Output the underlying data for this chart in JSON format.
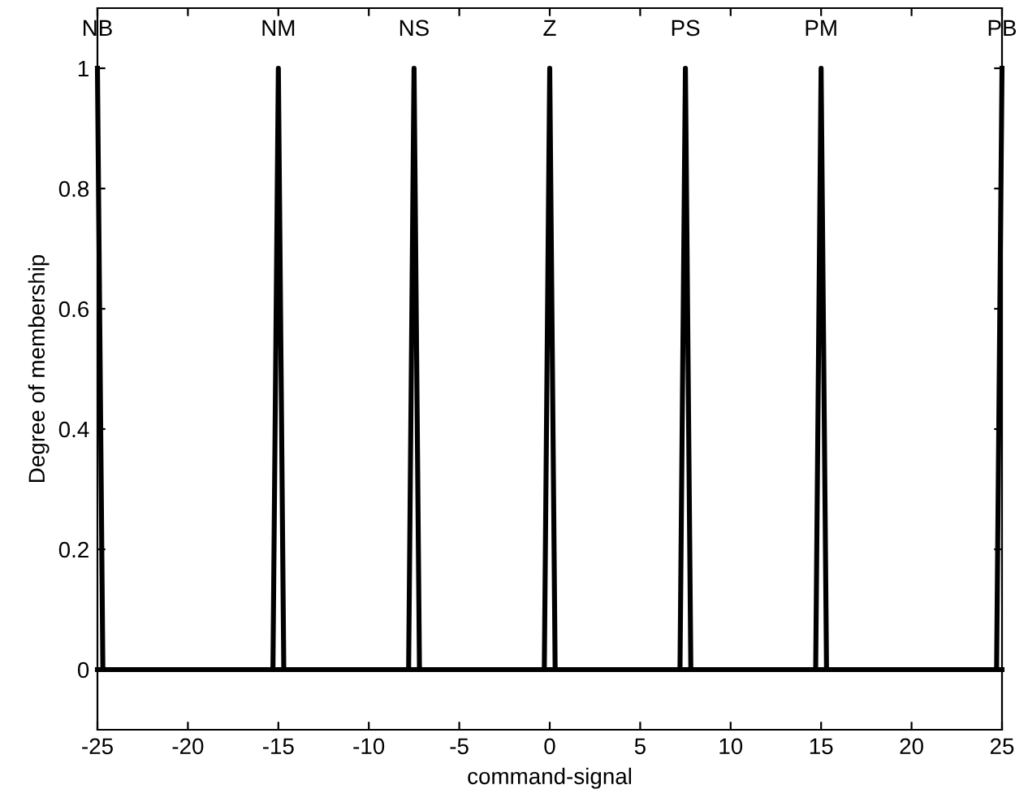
{
  "chart_data": {
    "type": "line",
    "xlabel": "command-signal",
    "ylabel": "Degree of membership",
    "series": [
      {
        "name": "NB",
        "color": "#000000",
        "x": [
          -25,
          -24.7
        ],
        "values": [
          1,
          0
        ]
      },
      {
        "name": "NM",
        "color": "#000000",
        "x": [
          -15.3,
          -15,
          -14.7
        ],
        "values": [
          0,
          1,
          0
        ]
      },
      {
        "name": "NS",
        "color": "#000000",
        "x": [
          -7.8,
          -7.5,
          -7.2
        ],
        "values": [
          0,
          1,
          0
        ]
      },
      {
        "name": "Z",
        "color": "#000000",
        "x": [
          -0.3,
          0,
          0.3
        ],
        "values": [
          0,
          1,
          0
        ]
      },
      {
        "name": "PS",
        "color": "#000000",
        "x": [
          7.2,
          7.5,
          7.8
        ],
        "values": [
          0,
          1,
          0
        ]
      },
      {
        "name": "PM",
        "color": "#000000",
        "x": [
          14.7,
          15,
          15.3
        ],
        "values": [
          0,
          1,
          0
        ]
      },
      {
        "name": "PB",
        "color": "#000000",
        "x": [
          24.7,
          25
        ],
        "values": [
          0,
          1
        ]
      },
      {
        "color": "#000000",
        "x": [
          -25,
          25
        ],
        "values": [
          0,
          0
        ]
      }
    ],
    "xlim": [
      -25,
      25
    ],
    "ylim": [
      -0.1,
      1.1
    ],
    "xticks": [
      -25,
      -20,
      -15,
      -10,
      -5,
      0,
      5,
      10,
      15,
      20,
      25
    ],
    "yticks": [
      0,
      0.2,
      0.4,
      0.6,
      0.8,
      1
    ],
    "grid": false,
    "legend": "top",
    "marker": "none",
    "line_style": "solid"
  }
}
